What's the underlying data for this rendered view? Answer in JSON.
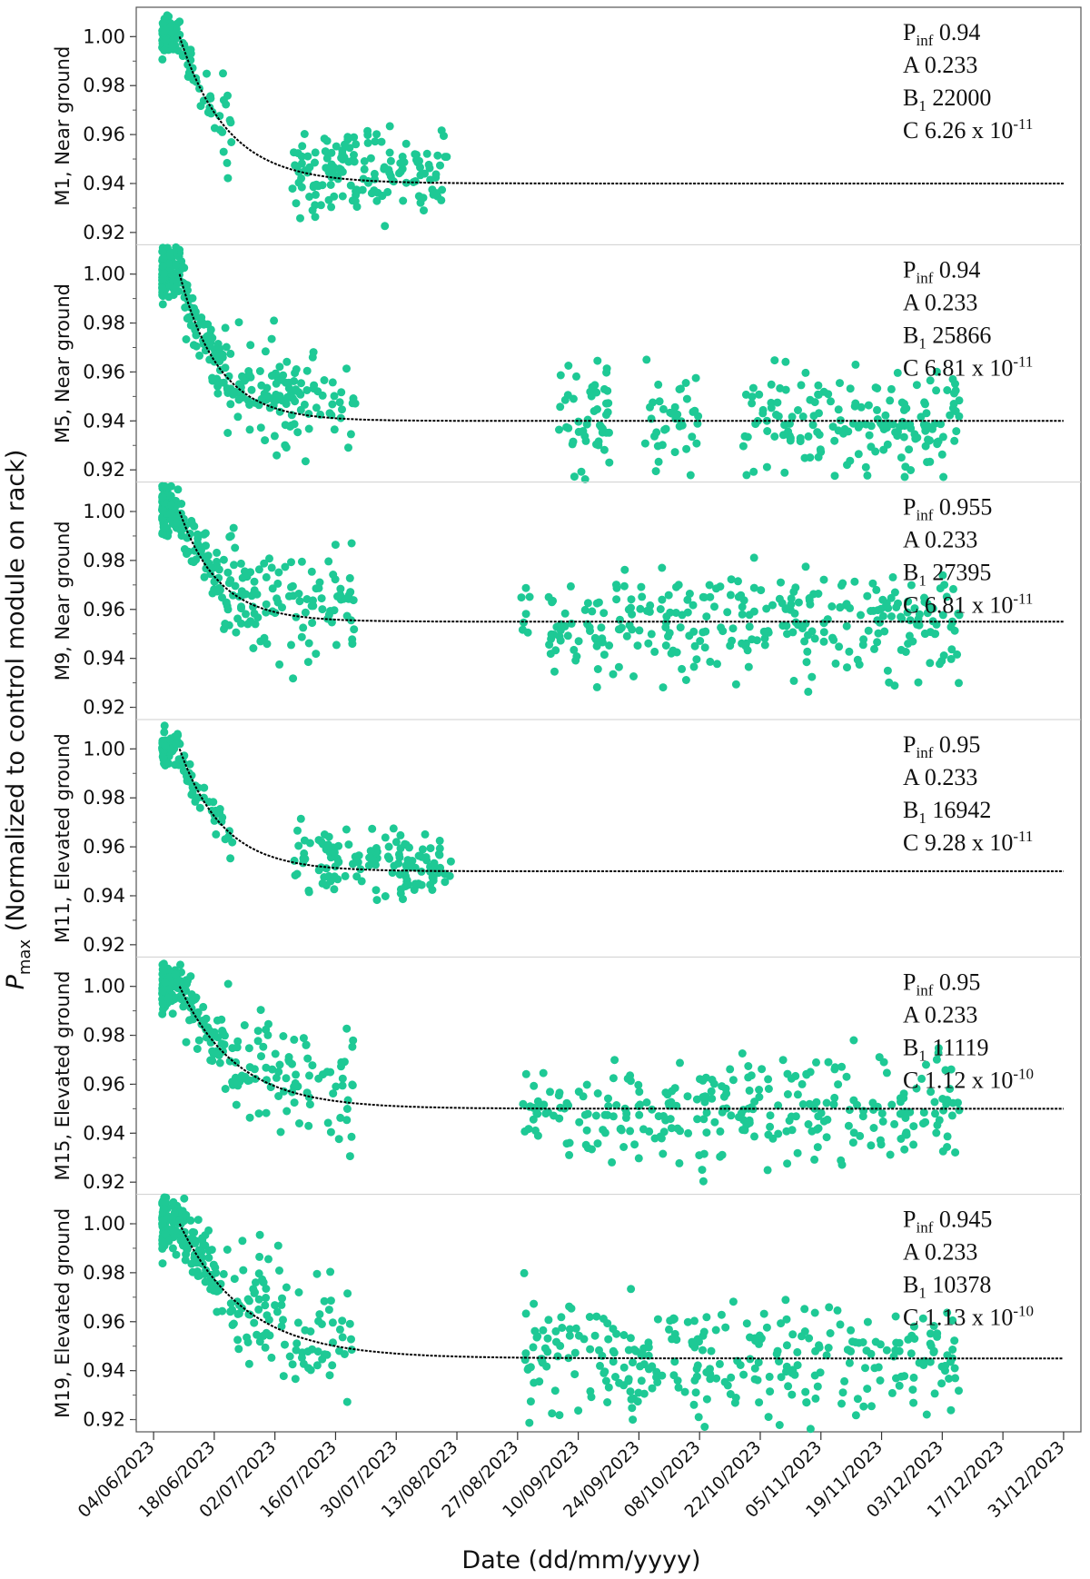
{
  "chart_data": {
    "type": "scatter",
    "xlabel": "Date (dd/mm/yyyy)",
    "ylabel": {
      "main": "P",
      "sub": "max",
      "rest": " (Normalized to control module on rack)"
    },
    "x_ticks": [
      "04/06/2023",
      "18/06/2023",
      "02/07/2023",
      "16/07/2023",
      "30/07/2023",
      "13/08/2023",
      "27/08/2023",
      "10/09/2023",
      "24/09/2023",
      "08/10/2023",
      "22/10/2023",
      "05/11/2023",
      "19/11/2023",
      "03/12/2023",
      "17/12/2023",
      "31/12/2023"
    ],
    "xlim": [
      "2023-05-31",
      "2024-01-04"
    ],
    "ylim": [
      0.915,
      1.012
    ],
    "y_ticks": [
      "1.00",
      "0.98",
      "0.96",
      "0.94",
      "0.92"
    ],
    "point_color": "#1ec995",
    "fit_color": "#000000",
    "fit_start": "2023-06-10",
    "fit_end": "2023-12-31",
    "panels": [
      {
        "label": "M1, Near ground",
        "pinf": "0.94",
        "A": "0.233",
        "B1": "22000",
        "C_mant": "6.26",
        "C_exp": "-11",
        "tau_days": 11,
        "data_end": "2023-08-11",
        "gaps": [],
        "spread": 0.009,
        "hump": 0.008,
        "n": 260
      },
      {
        "label": "M5, Near ground",
        "pinf": "0.94",
        "A": "0.233",
        "B1": "25866",
        "C_mant": "6.81",
        "C_exp": "-11",
        "tau_days": 9,
        "data_end": "2023-12-07",
        "gaps": [
          [
            "2023-08-22",
            "2023-09-05"
          ],
          [
            "2023-09-18",
            "2023-09-25"
          ],
          [
            "2023-10-08",
            "2023-10-18"
          ]
        ],
        "spread": 0.011,
        "hump": 0.014,
        "n": 540
      },
      {
        "label": "M9, Near ground",
        "pinf": "0.955",
        "A": "0.233",
        "B1": "27395",
        "C_mant": "6.81",
        "C_exp": "-11",
        "tau_days": 9,
        "data_end": "2023-12-07",
        "gaps": [
          [
            "2023-08-30",
            "2023-09-03"
          ]
        ],
        "spread": 0.011,
        "hump": 0.015,
        "n": 560
      },
      {
        "label": "M11, Elevated ground",
        "pinf": "0.95",
        "A": "0.233",
        "B1": "16942",
        "C_mant": "9.28",
        "C_exp": "-11",
        "tau_days": 10,
        "data_end": "2023-08-12",
        "gaps": [],
        "spread": 0.007,
        "hump": 0.007,
        "n": 230
      },
      {
        "label": "M15, Elevated ground",
        "pinf": "0.95",
        "A": "0.233",
        "B1": "11119",
        "C_mant": "1.12",
        "C_exp": "-10",
        "tau_days": 13,
        "data_end": "2023-12-07",
        "gaps": [],
        "spread": 0.011,
        "hump": 0.016,
        "n": 520
      },
      {
        "label": "M19, Elevated ground",
        "pinf": "0.945",
        "A": "0.233",
        "B1": "10378",
        "C_mant": "1.13",
        "C_exp": "-10",
        "tau_days": 15,
        "data_end": "2023-12-07",
        "gaps": [],
        "spread": 0.012,
        "hump": 0.012,
        "n": 560
      }
    ]
  }
}
